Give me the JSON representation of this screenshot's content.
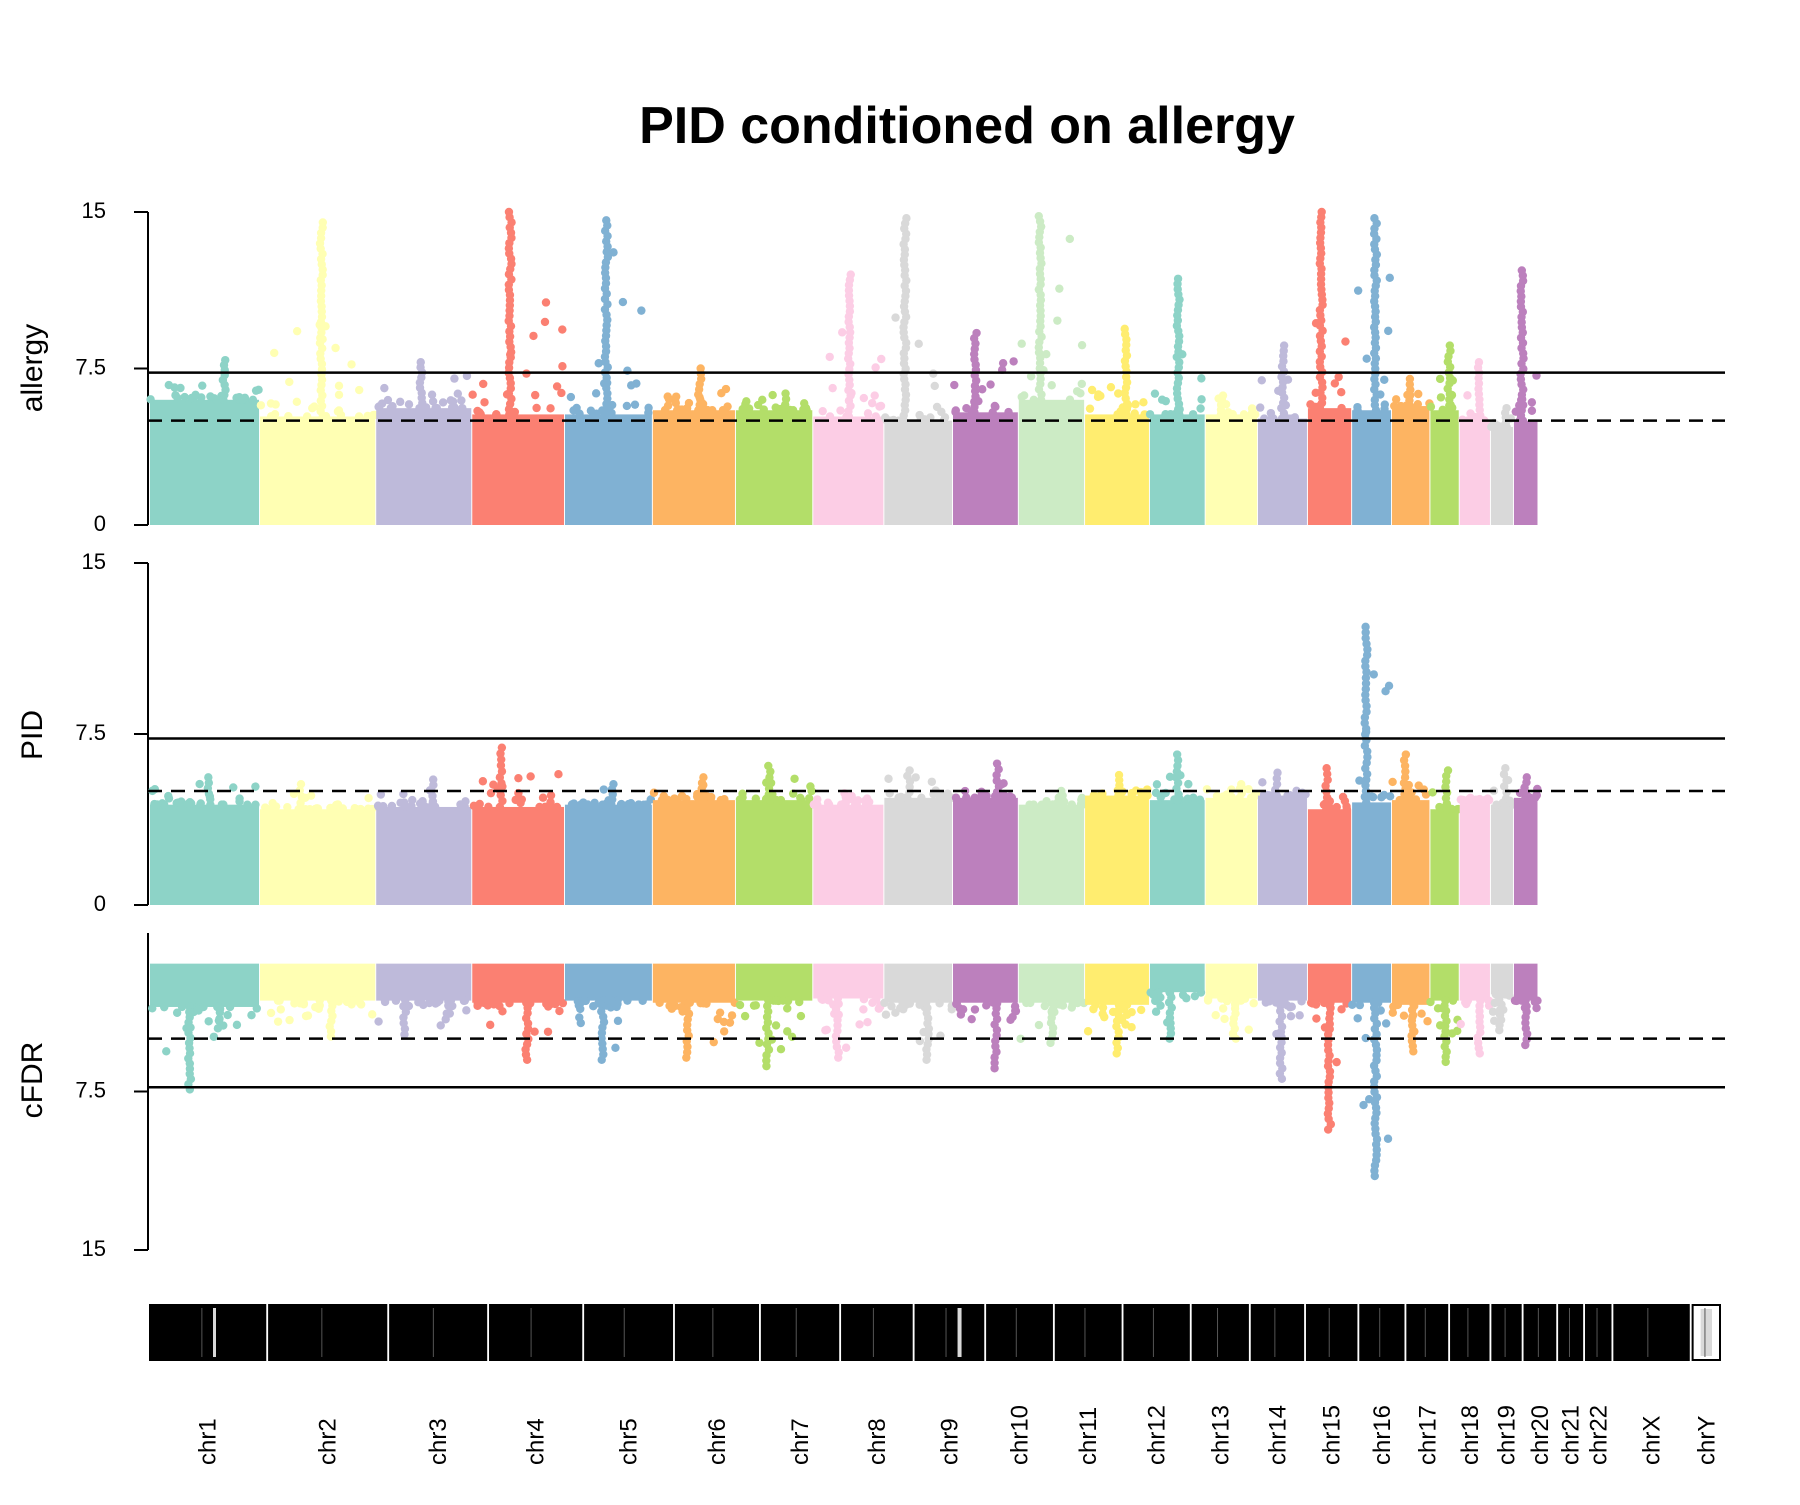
{
  "chart_data": {
    "type": "scatter",
    "title": "PID conditioned on allergy",
    "panels": [
      {
        "id": "allergy",
        "ylabel": "allergy",
        "ticks": [
          "15",
          "7.5",
          "0"
        ],
        "ylim": [
          0,
          15
        ],
        "solid_threshold": 7.3,
        "dashed_threshold": 5.0
      },
      {
        "id": "PID",
        "ylabel": "PID",
        "ticks": [
          "15",
          "7.5",
          "0"
        ],
        "ylim": [
          0,
          15
        ],
        "solid_threshold": 7.3,
        "dashed_threshold": 5.0
      },
      {
        "id": "cFDR",
        "ylabel": "cFDR",
        "ticks": [
          "7.5",
          "15"
        ],
        "ylim": [
          0,
          15
        ],
        "inverted": true,
        "solid_threshold": 7.3,
        "dashed_threshold": 5.0
      }
    ],
    "palette": [
      "#8DD3C7",
      "#FFFFB3",
      "#BEBADA",
      "#FB8072",
      "#80B1D3",
      "#FDB462",
      "#B3DE69",
      "#FCCDE5",
      "#D9D9D9",
      "#BC80BD",
      "#CCEBC5",
      "#FFED6F"
    ],
    "chromosomes": [
      {
        "name": "chr1",
        "start": 0,
        "end": 227,
        "color": "#8DD3C7",
        "allergy_top": 6.0,
        "allergy_peak": 7.9,
        "pid_top": 4.4,
        "pid_peak": 5.6,
        "cfdr_top": 3.5,
        "cfdr_peak": 7.4
      },
      {
        "name": "chr2",
        "start": 229,
        "end": 469,
        "color": "#FFFFB3",
        "allergy_top": 5.2,
        "allergy_peak": 14.5,
        "pid_top": 4.2,
        "pid_peak": 5.3,
        "cfdr_top": 3.2,
        "cfdr_peak": 4.9
      },
      {
        "name": "chr3",
        "start": 471,
        "end": 669,
        "color": "#BEBADA",
        "allergy_top": 5.6,
        "allergy_peak": 7.8,
        "pid_top": 4.3,
        "pid_peak": 5.5,
        "cfdr_top": 3.2,
        "cfdr_peak": 4.8
      },
      {
        "name": "chr4",
        "start": 671,
        "end": 862,
        "color": "#FB8072",
        "allergy_top": 5.3,
        "allergy_peak": 15.0,
        "pid_top": 4.3,
        "pid_peak": 6.9,
        "cfdr_top": 3.3,
        "cfdr_peak": 6.0
      },
      {
        "name": "chr5",
        "start": 864,
        "end": 1045,
        "color": "#80B1D3",
        "allergy_top": 5.3,
        "allergy_peak": 14.6,
        "pid_top": 4.4,
        "pid_peak": 5.3,
        "cfdr_top": 3.2,
        "cfdr_peak": 6.0
      },
      {
        "name": "chr6",
        "start": 1047,
        "end": 1218,
        "color": "#FDB462",
        "allergy_top": 5.5,
        "allergy_peak": 7.5,
        "pid_top": 4.6,
        "pid_peak": 5.6,
        "cfdr_top": 3.3,
        "cfdr_peak": 5.9
      },
      {
        "name": "chr7",
        "start": 1220,
        "end": 1379,
        "color": "#B3DE69",
        "allergy_top": 5.5,
        "allergy_peak": 6.3,
        "pid_top": 4.6,
        "pid_peak": 6.1,
        "cfdr_top": 3.2,
        "cfdr_peak": 6.3
      },
      {
        "name": "chr8",
        "start": 1381,
        "end": 1527,
        "color": "#FCCDE5",
        "allergy_top": 5.2,
        "allergy_peak": 12.0,
        "pid_top": 4.4,
        "pid_peak": 4.9,
        "cfdr_top": 3.1,
        "cfdr_peak": 5.9
      },
      {
        "name": "chr9",
        "start": 1529,
        "end": 1670,
        "color": "#D9D9D9",
        "allergy_top": 5.0,
        "allergy_peak": 14.7,
        "pid_top": 4.7,
        "pid_peak": 5.9,
        "cfdr_top": 3.3,
        "cfdr_peak": 6.0
      },
      {
        "name": "chr10",
        "start": 1672,
        "end": 1807,
        "color": "#BC80BD",
        "allergy_top": 5.4,
        "allergy_peak": 9.2,
        "pid_top": 4.7,
        "pid_peak": 6.2,
        "cfdr_top": 3.3,
        "cfdr_peak": 6.4
      },
      {
        "name": "chr11",
        "start": 1809,
        "end": 1945,
        "color": "#CCEBC5",
        "allergy_top": 6.0,
        "allergy_peak": 14.8,
        "pid_top": 4.4,
        "pid_peak": 5.0,
        "cfdr_top": 3.3,
        "cfdr_peak": 5.2
      },
      {
        "name": "chr12",
        "start": 1947,
        "end": 2080,
        "color": "#FFED6F",
        "allergy_top": 5.3,
        "allergy_peak": 9.4,
        "pid_top": 4.8,
        "pid_peak": 5.7,
        "cfdr_top": 3.4,
        "cfdr_peak": 5.7
      },
      {
        "name": "chr13",
        "start": 2082,
        "end": 2196,
        "color": "#8DD3C7",
        "allergy_top": 5.3,
        "allergy_peak": 11.8,
        "pid_top": 4.6,
        "pid_peak": 6.6,
        "cfdr_top": 2.8,
        "cfdr_peak": 5.0
      },
      {
        "name": "chr14",
        "start": 2198,
        "end": 2305,
        "color": "#FFFFB3",
        "allergy_top": 5.3,
        "allergy_peak": 6.2,
        "pid_top": 4.7,
        "pid_peak": 5.3,
        "cfdr_top": 3.1,
        "cfdr_peak": 5.0
      },
      {
        "name": "chr15",
        "start": 2307,
        "end": 2409,
        "color": "#BEBADA",
        "allergy_top": 5.1,
        "allergy_peak": 8.6,
        "pid_top": 4.8,
        "pid_peak": 5.8,
        "cfdr_top": 3.2,
        "cfdr_peak": 6.9
      },
      {
        "name": "chr16",
        "start": 2411,
        "end": 2501,
        "color": "#FB8072",
        "allergy_top": 5.6,
        "allergy_peak": 15.0,
        "pid_top": 4.2,
        "pid_peak": 6.0,
        "cfdr_top": 3.3,
        "cfdr_peak": 9.3
      },
      {
        "name": "chr17",
        "start": 2503,
        "end": 2584,
        "color": "#80B1D3",
        "allergy_top": 5.5,
        "allergy_peak": 14.7,
        "pid_top": 4.5,
        "pid_peak": 12.2,
        "cfdr_top": 3.3,
        "cfdr_peak": 11.5
      },
      {
        "name": "chr18",
        "start": 2586,
        "end": 2664,
        "color": "#FDB462",
        "allergy_top": 5.7,
        "allergy_peak": 7.0,
        "pid_top": 4.6,
        "pid_peak": 6.6,
        "cfdr_top": 3.4,
        "cfdr_peak": 5.6
      },
      {
        "name": "chr19",
        "start": 2666,
        "end": 2725,
        "color": "#B3DE69",
        "allergy_top": 5.5,
        "allergy_peak": 8.6,
        "pid_top": 4.2,
        "pid_peak": 5.9,
        "cfdr_top": 3.2,
        "cfdr_peak": 6.1
      },
      {
        "name": "chr20",
        "start": 2727,
        "end": 2790,
        "color": "#FCCDE5",
        "allergy_top": 5.0,
        "allergy_peak": 7.8,
        "pid_top": 4.6,
        "pid_peak": 4.7,
        "cfdr_top": 3.2,
        "cfdr_peak": 5.7
      },
      {
        "name": "chr21",
        "start": 2792,
        "end": 2838,
        "color": "#D9D9D9",
        "allergy_top": 4.7,
        "allergy_peak": 5.6,
        "pid_top": 4.4,
        "pid_peak": 6.0,
        "cfdr_top": 2.9,
        "cfdr_peak": 4.6
      },
      {
        "name": "chr22",
        "start": 2840,
        "end": 2889,
        "color": "#BC80BD",
        "allergy_top": 5.0,
        "allergy_peak": 12.2,
        "pid_top": 4.7,
        "pid_peak": 5.6,
        "cfdr_top": 3.2,
        "cfdr_peak": 5.3
      }
    ],
    "ideogram": [
      {
        "name": "chr1",
        "start": 0,
        "end": 240
      },
      {
        "name": "chr2",
        "start": 248,
        "end": 492
      },
      {
        "name": "chr3",
        "start": 500,
        "end": 700
      },
      {
        "name": "chr4",
        "start": 708,
        "end": 898
      },
      {
        "name": "chr5",
        "start": 906,
        "end": 1087
      },
      {
        "name": "chr6",
        "start": 1095,
        "end": 1266
      },
      {
        "name": "chr7",
        "start": 1274,
        "end": 1433
      },
      {
        "name": "chr8",
        "start": 1441,
        "end": 1586
      },
      {
        "name": "chr9",
        "start": 1594,
        "end": 1735
      },
      {
        "name": "chr10",
        "start": 1743,
        "end": 1878
      },
      {
        "name": "chr11",
        "start": 1886,
        "end": 2021
      },
      {
        "name": "chr12",
        "start": 2029,
        "end": 2163
      },
      {
        "name": "chr13",
        "start": 2171,
        "end": 2286
      },
      {
        "name": "chr14",
        "start": 2294,
        "end": 2401
      },
      {
        "name": "chr15",
        "start": 2409,
        "end": 2512
      },
      {
        "name": "chr16",
        "start": 2520,
        "end": 2610
      },
      {
        "name": "chr17",
        "start": 2618,
        "end": 2701
      },
      {
        "name": "chr18",
        "start": 2709,
        "end": 2787
      },
      {
        "name": "chr19",
        "start": 2795,
        "end": 2854
      },
      {
        "name": "chr20",
        "start": 2862,
        "end": 2926
      },
      {
        "name": "chr21",
        "start": 2934,
        "end": 2982
      },
      {
        "name": "chr22",
        "start": 2990,
        "end": 3041
      },
      {
        "name": "chrX",
        "start": 3049,
        "end": 3204
      },
      {
        "name": "chrY",
        "start": 3212,
        "end": 3269
      }
    ]
  },
  "colors": {
    "ideogram_band": "#000000",
    "ideogram_acen": "#D9D9D9",
    "line": "#000000"
  }
}
